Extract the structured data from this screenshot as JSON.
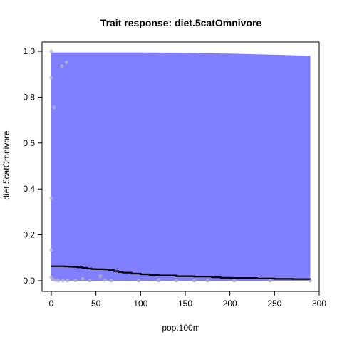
{
  "chart_data": {
    "type": "line",
    "title": "Trait response: diet.5catOmnivore",
    "xlabel": "pop.100m",
    "ylabel": "diet.5catOmnivore",
    "xlim": [
      0,
      300
    ],
    "ylim": [
      0,
      1
    ],
    "x_ticks": [
      "0",
      "50",
      "100",
      "150",
      "200",
      "250",
      "300"
    ],
    "y_ticks": [
      "0.0",
      "0.2",
      "0.4",
      "0.6",
      "0.8",
      "1.0"
    ],
    "band_color": "#8080ff",
    "line_color": "#000000",
    "point_color": "#b3b3cc",
    "band": {
      "x": [
        0,
        50,
        100,
        150,
        200,
        250,
        290
      ],
      "lower": [
        0,
        0,
        0,
        0,
        0,
        0,
        0
      ],
      "upper": [
        0.995,
        0.995,
        0.995,
        0.993,
        0.99,
        0.985,
        0.98
      ]
    },
    "line": {
      "x": [
        0,
        5,
        10,
        15,
        20,
        25,
        30,
        35,
        40,
        45,
        50,
        55,
        60,
        65,
        70,
        75,
        80,
        90,
        100,
        110,
        120,
        140,
        160,
        180,
        190,
        200,
        230,
        250,
        270,
        290
      ],
      "y": [
        0.063,
        0.063,
        0.063,
        0.062,
        0.061,
        0.06,
        0.058,
        0.056,
        0.053,
        0.051,
        0.05,
        0.05,
        0.049,
        0.046,
        0.042,
        0.038,
        0.035,
        0.031,
        0.028,
        0.025,
        0.023,
        0.02,
        0.018,
        0.015,
        0.013,
        0.012,
        0.01,
        0.008,
        0.007,
        0.006
      ]
    },
    "points": [
      {
        "x": 0,
        "y": 1.0
      },
      {
        "x": 0,
        "y": 0.885
      },
      {
        "x": 3,
        "y": 0.755
      },
      {
        "x": 12,
        "y": 0.935
      },
      {
        "x": 17,
        "y": 0.952
      },
      {
        "x": 0,
        "y": 0.36
      },
      {
        "x": 0,
        "y": 0.135
      },
      {
        "x": 0,
        "y": 0.015
      },
      {
        "x": 2,
        "y": 0.005
      },
      {
        "x": 5,
        "y": 0.002
      },
      {
        "x": 8,
        "y": 0.0
      },
      {
        "x": 13,
        "y": 0.0
      },
      {
        "x": 18,
        "y": 0.0
      },
      {
        "x": 27,
        "y": 0.002
      },
      {
        "x": 35,
        "y": 0.008
      },
      {
        "x": 43,
        "y": 0.0
      },
      {
        "x": 55,
        "y": 0.02
      },
      {
        "x": 60,
        "y": 0.003
      },
      {
        "x": 67,
        "y": 0.0
      },
      {
        "x": 98,
        "y": 0.0
      },
      {
        "x": 120,
        "y": 0.0
      },
      {
        "x": 140,
        "y": 0.0
      },
      {
        "x": 160,
        "y": 0.0
      },
      {
        "x": 175,
        "y": 0.0
      },
      {
        "x": 205,
        "y": 0.0
      },
      {
        "x": 245,
        "y": 0.0
      },
      {
        "x": 290,
        "y": 0.0
      }
    ]
  }
}
